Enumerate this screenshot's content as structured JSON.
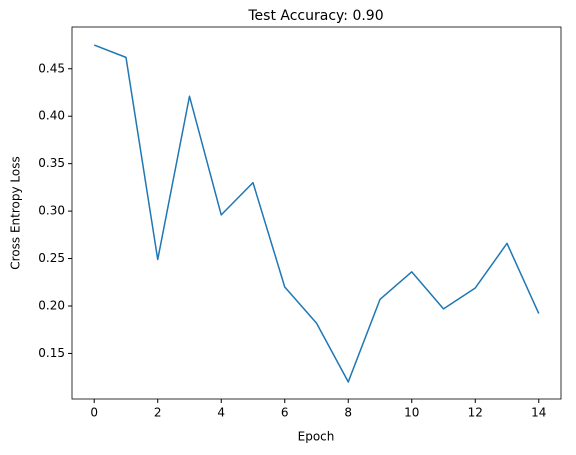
{
  "chart_data": {
    "type": "line",
    "title": "Test Accuracy: 0.90",
    "x_label": "Epoch",
    "y_label": "Cross Entropy Loss",
    "x": [
      0,
      1,
      2,
      3,
      4,
      5,
      6,
      7,
      8,
      9,
      10,
      11,
      12,
      13,
      14
    ],
    "series": [
      {
        "name": "loss",
        "color": "#1f77b4",
        "values": [
          0.475,
          0.462,
          0.249,
          0.421,
          0.296,
          0.33,
          0.22,
          0.182,
          0.12,
          0.207,
          0.236,
          0.197,
          0.219,
          0.266,
          0.192
        ]
      }
    ],
    "xlim": [
      -0.7,
      14.7
    ],
    "xticks": [
      0,
      2,
      4,
      6,
      8,
      10,
      12,
      14
    ],
    "ylim": [
      0.102,
      0.494
    ],
    "yticks": [
      0.15,
      {
        "value": 0.2,
        "label": "0.20"
      },
      0.25,
      {
        "value": 0.3,
        "label": "0.30"
      },
      0.35,
      {
        "value": 0.4,
        "label": "0.40"
      },
      0.45
    ],
    "grid": false
  }
}
